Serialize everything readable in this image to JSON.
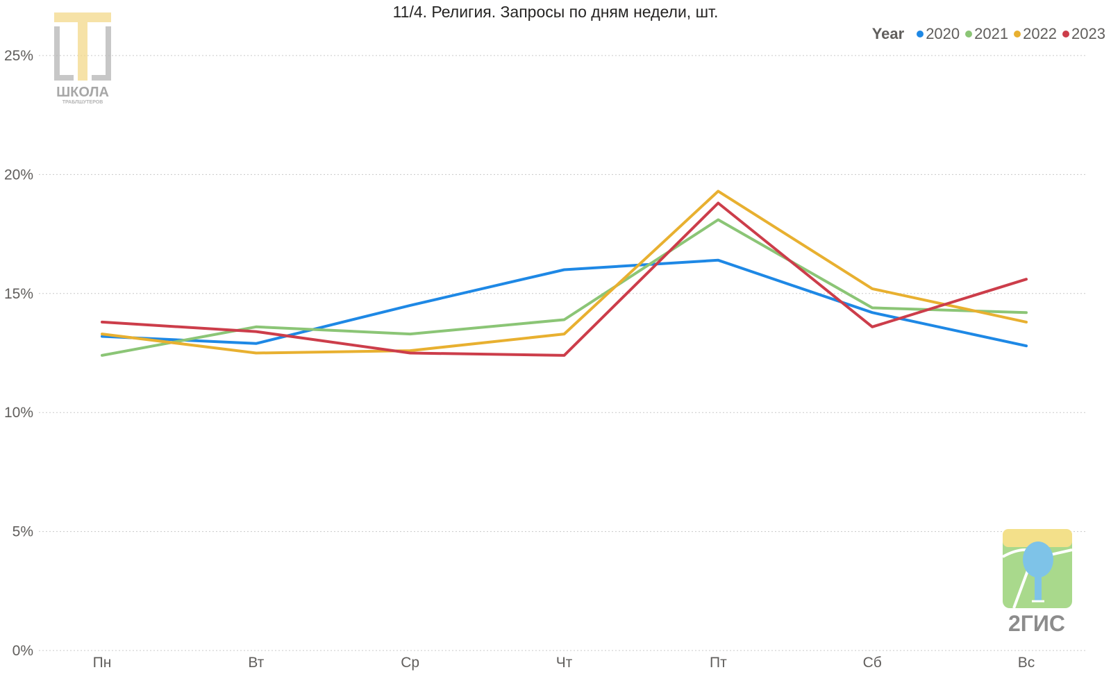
{
  "chart_data": {
    "type": "line",
    "title": "11/4. Религия. Запросы по дням недели, шт.",
    "legend_title": "Year",
    "legend_position": "top-right",
    "categories": [
      "Пн",
      "Вт",
      "Ср",
      "Чт",
      "Пт",
      "Сб",
      "Вс"
    ],
    "y_ticks": [
      "0%",
      "5%",
      "10%",
      "15%",
      "20%",
      "25%"
    ],
    "ylim": [
      0,
      25
    ],
    "grid": true,
    "series": [
      {
        "name": "2020",
        "color": "#1e88e5",
        "values": [
          13.2,
          12.9,
          14.5,
          16.0,
          16.4,
          14.2,
          12.8
        ]
      },
      {
        "name": "2021",
        "color": "#8bc576",
        "values": [
          12.4,
          13.6,
          13.3,
          13.9,
          18.1,
          14.4,
          14.2
        ]
      },
      {
        "name": "2022",
        "color": "#e8b030",
        "values": [
          13.3,
          12.5,
          12.6,
          13.3,
          19.3,
          15.2,
          13.8
        ]
      },
      {
        "name": "2023",
        "color": "#cc3d4a",
        "values": [
          13.8,
          13.4,
          12.5,
          12.4,
          18.8,
          13.6,
          15.6
        ]
      }
    ]
  },
  "logos": {
    "school_main": "ШКОЛА",
    "school_sub": "ТРАБЛШУТЕРОВ",
    "gis": "2ГИС"
  }
}
